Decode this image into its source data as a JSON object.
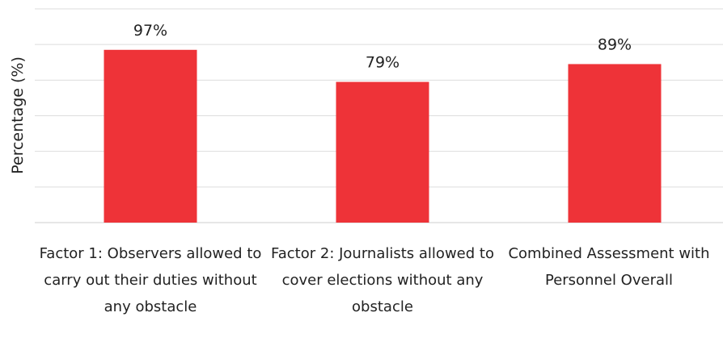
{
  "chart_data": {
    "type": "bar",
    "title": "",
    "xlabel": "",
    "ylabel": "Percentage (%)",
    "ylim": [
      0,
      120
    ],
    "grid": true,
    "categories": [
      "Factor 1: Observers allowed to carry out their duties without any obstacle",
      "Factor 2: Journalists allowed to cover elections without any obstacle",
      "Combined Assessment with Personnel Overall"
    ],
    "values": [
      97,
      79,
      89
    ],
    "data_labels": [
      "97%",
      "79%",
      "89%"
    ],
    "colors": {
      "bar": "#EE3338",
      "grid": "#DDDDDD",
      "text": "#222222"
    }
  }
}
